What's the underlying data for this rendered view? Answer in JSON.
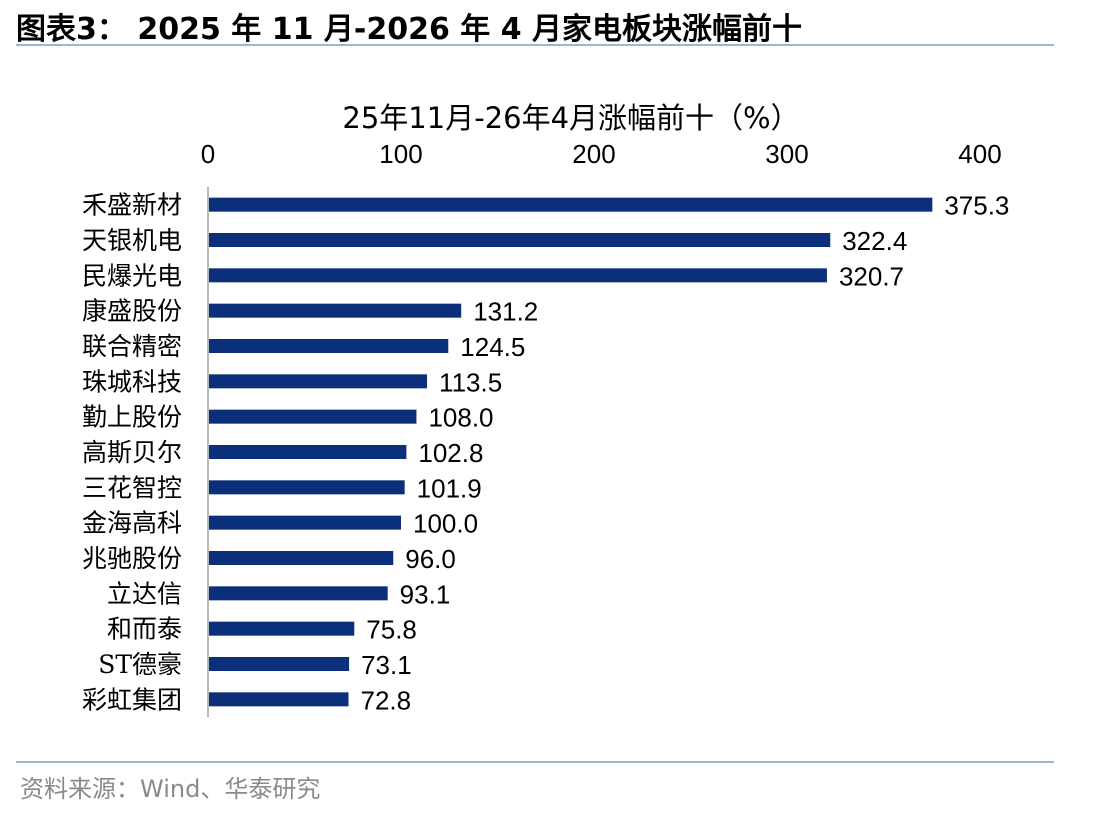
{
  "figure_title": "图表3： 2025 年 11 月-2026 年 4 月家电板块涨幅前十",
  "source": "资料来源：Wind、华泰研究",
  "colors": {
    "bar": "#0b2f7a",
    "rule": "#9fb6cc",
    "axis": "#b8b8b8",
    "source_text": "#8a8a8a"
  },
  "chart_data": {
    "type": "bar",
    "orientation": "horizontal",
    "title": "25年11月-26年4月涨幅前十（%）",
    "x_axis_position": "top",
    "xlim": [
      0,
      400
    ],
    "xticks": [
      "0",
      "100",
      "200",
      "300",
      "400"
    ],
    "grid": false,
    "categories": [
      "禾盛新材",
      "天银机电",
      "民爆光电",
      "康盛股份",
      "联合精密",
      "珠城科技",
      "勤上股份",
      "高斯贝尔",
      "三花智控",
      "金海高科",
      "兆驰股份",
      "立达信",
      "和而泰",
      "ST德豪",
      "彩虹集团"
    ],
    "values": [
      375.3,
      322.4,
      320.7,
      131.2,
      124.5,
      113.5,
      108.0,
      102.8,
      101.9,
      100.0,
      96.0,
      93.1,
      75.8,
      73.1,
      72.8
    ],
    "value_labels": [
      "375.3",
      "322.4",
      "320.7",
      "131.2",
      "124.5",
      "113.5",
      "108.0",
      "102.8",
      "101.9",
      "100.0",
      "96.0",
      "93.1",
      "75.8",
      "73.1",
      "72.8"
    ]
  }
}
